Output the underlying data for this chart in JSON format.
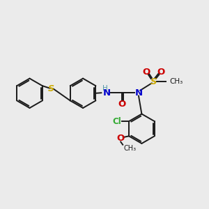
{
  "bg_color": "#ebebeb",
  "bond_color": "#1a1a1a",
  "lw": 1.4,
  "figsize": [
    3.0,
    3.0
  ],
  "dpi": 100,
  "xlim": [
    0,
    10
  ],
  "ylim": [
    0,
    10
  ],
  "colors": {
    "S": "#ccaa00",
    "N": "#0000cc",
    "O": "#cc0000",
    "Cl": "#33aa33",
    "NH": "#5599aa",
    "H": "#5599aa"
  }
}
